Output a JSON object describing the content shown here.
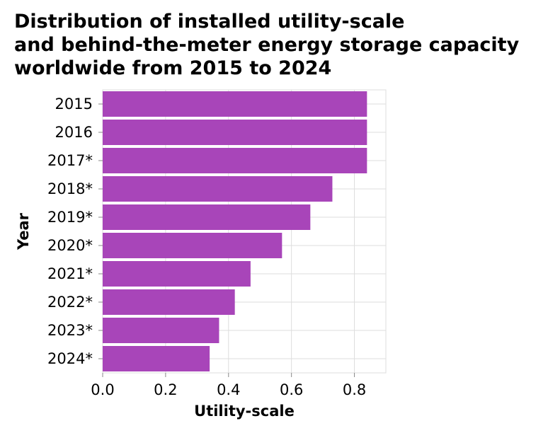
{
  "chart_data": {
    "type": "bar",
    "orientation": "horizontal",
    "title_lines": [
      "Distribution of installed utility-scale",
      "and behind-the-meter energy storage capacity",
      "worldwide from 2015 to 2024"
    ],
    "xlabel": "Utility-scale",
    "ylabel": "Year",
    "categories": [
      "2015",
      "2016",
      "2017*",
      "2018*",
      "2019*",
      "2020*",
      "2021*",
      "2022*",
      "2023*",
      "2024*"
    ],
    "values": [
      0.84,
      0.84,
      0.84,
      0.73,
      0.66,
      0.57,
      0.47,
      0.42,
      0.37,
      0.34
    ],
    "xlim": [
      0,
      0.9
    ],
    "xticks": [
      "0.0",
      "0.2",
      "0.4",
      "0.6",
      "0.8"
    ],
    "xtick_values": [
      0,
      0.2,
      0.4,
      0.6,
      0.8
    ],
    "grid": true,
    "colors": {
      "bar": "#a845b9",
      "grid": "#dddddd"
    }
  }
}
